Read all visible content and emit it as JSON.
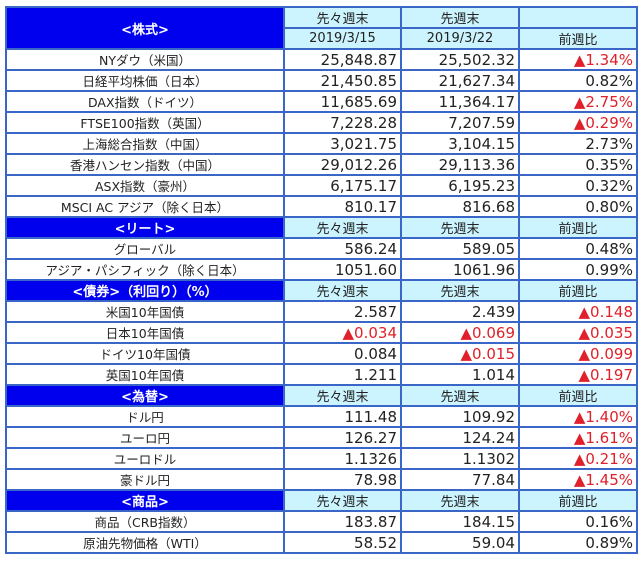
{
  "colors": {
    "section_bg": "#0000ee",
    "header_bg": "#ccf4ff",
    "border": "#3a66c8",
    "negative": "#e0202a"
  },
  "headers": {
    "prev2": "先々週末",
    "prev1": "先週末",
    "change": "前週比",
    "date2": "2019/3/15",
    "date1": "2019/3/22"
  },
  "sections": [
    {
      "title": "<株式>",
      "rows": [
        {
          "name": "NYダウ（米国）",
          "v1": "25,848.87",
          "v2": "25,502.32",
          "chg": "▲1.34%"
        },
        {
          "name": "日経平均株価（日本）",
          "v1": "21,450.85",
          "v2": "21,627.34",
          "chg": "0.82%"
        },
        {
          "name": "DAX指数（ドイツ）",
          "v1": "11,685.69",
          "v2": "11,364.17",
          "chg": "▲2.75%"
        },
        {
          "name": "FTSE100指数（英国）",
          "v1": "7,228.28",
          "v2": "7,207.59",
          "chg": "▲0.29%"
        },
        {
          "name": "上海総合指数（中国）",
          "v1": "3,021.75",
          "v2": "3,104.15",
          "chg": "2.73%"
        },
        {
          "name": "香港ハンセン指数（中国）",
          "v1": "29,012.26",
          "v2": "29,113.36",
          "chg": "0.35%"
        },
        {
          "name": "ASX指数（豪州）",
          "v1": "6,175.17",
          "v2": "6,195.23",
          "chg": "0.32%"
        },
        {
          "name": "MSCI AC アジア（除く日本）",
          "v1": "810.17",
          "v2": "816.68",
          "chg": "0.80%"
        }
      ]
    },
    {
      "title": "<リート>",
      "rows": [
        {
          "name": "グローバル",
          "v1": "586.24",
          "v2": "589.05",
          "chg": "0.48%"
        },
        {
          "name": "アジア・パシフィック（除く日本）",
          "v1": "1051.60",
          "v2": "1061.96",
          "chg": "0.99%"
        }
      ]
    },
    {
      "title": "<債券>（利回り）（%）",
      "rows": [
        {
          "name": "米国10年国債",
          "v1": "2.587",
          "v2": "2.439",
          "chg": "▲0.148"
        },
        {
          "name": "日本10年国債",
          "v1": "▲0.034",
          "v2": "▲0.069",
          "chg": "▲0.035"
        },
        {
          "name": "ドイツ10年国債",
          "v1": "0.084",
          "v2": "▲0.015",
          "chg": "▲0.099"
        },
        {
          "name": "英国10年国債",
          "v1": "1.211",
          "v2": "1.014",
          "chg": "▲0.197"
        }
      ]
    },
    {
      "title": "<為替>",
      "rows": [
        {
          "name": "ドル円",
          "v1": "111.48",
          "v2": "109.92",
          "chg": "▲1.40%"
        },
        {
          "name": "ユーロ円",
          "v1": "126.27",
          "v2": "124.24",
          "chg": "▲1.61%"
        },
        {
          "name": "ユーロドル",
          "v1": "1.1326",
          "v2": "1.1302",
          "chg": "▲0.21%"
        },
        {
          "name": "豪ドル円",
          "v1": "78.98",
          "v2": "77.84",
          "chg": "▲1.45%"
        }
      ]
    },
    {
      "title": "<商品>",
      "rows": [
        {
          "name": "商品（CRB指数）",
          "v1": "183.87",
          "v2": "184.15",
          "chg": "0.16%"
        },
        {
          "name": "原油先物価格（WTI）",
          "v1": "58.52",
          "v2": "59.04",
          "chg": "0.89%"
        }
      ]
    }
  ]
}
